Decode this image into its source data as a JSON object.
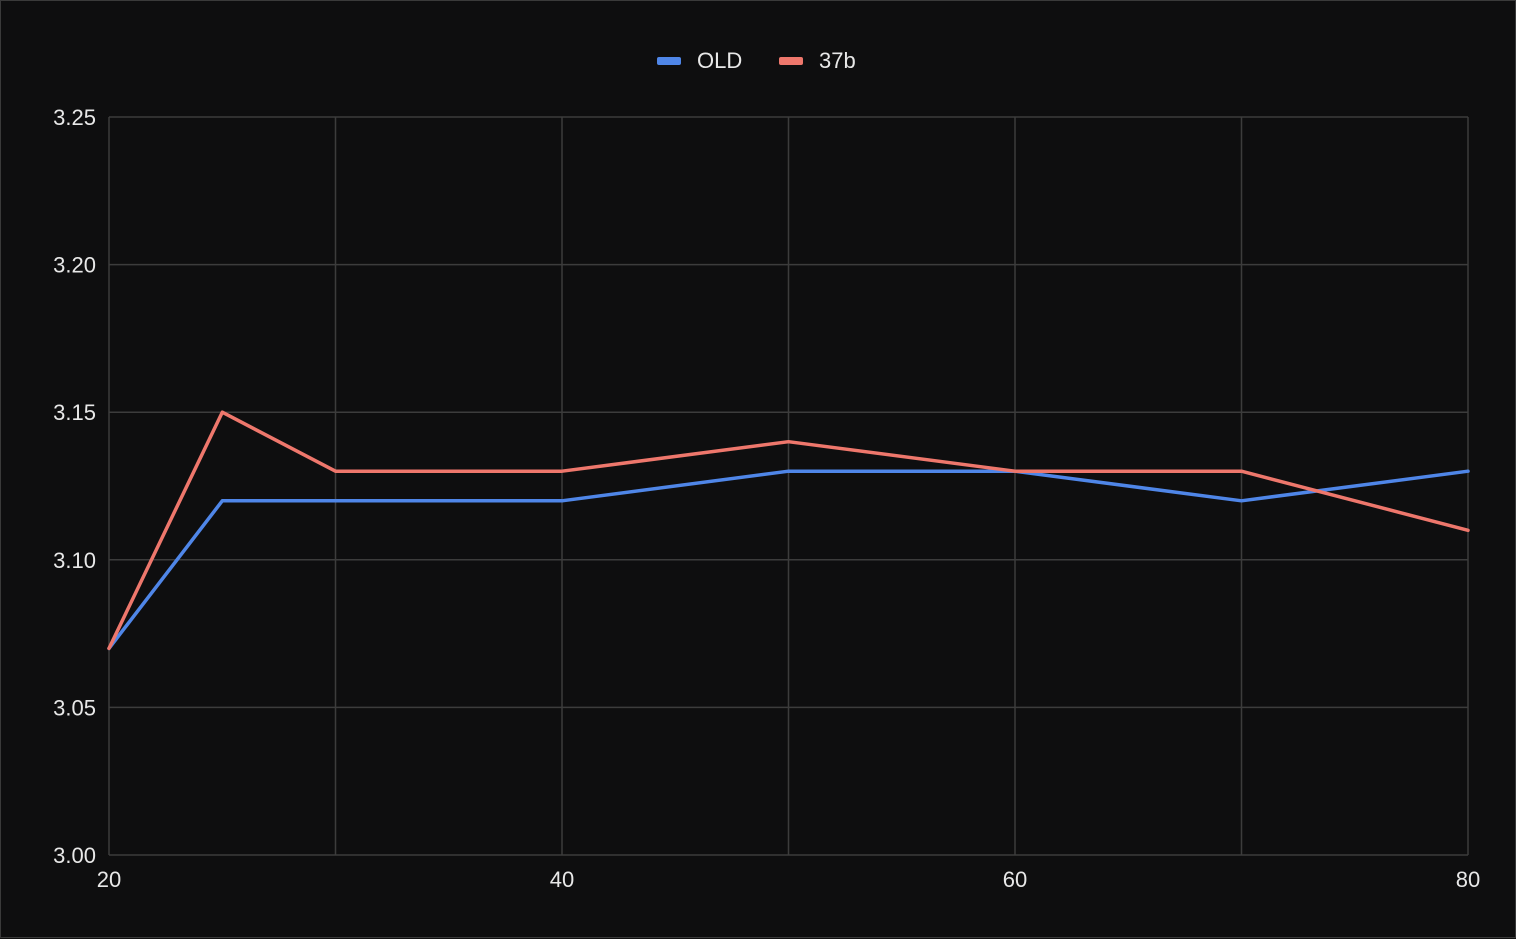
{
  "chart_data": {
    "type": "line",
    "title": "",
    "xlabel": "",
    "ylabel": "",
    "xlim": [
      20,
      80
    ],
    "ylim": [
      3.0,
      3.25
    ],
    "x_ticks": [
      20,
      40,
      60,
      80
    ],
    "x_tick_labels": [
      "20",
      "40",
      "60",
      "80"
    ],
    "x_minor_grid": [
      30,
      50,
      70
    ],
    "y_ticks": [
      3.0,
      3.05,
      3.1,
      3.15,
      3.2,
      3.25
    ],
    "y_tick_labels": [
      "3.00",
      "3.05",
      "3.10",
      "3.15",
      "3.20",
      "3.25"
    ],
    "grid": true,
    "legend_position": "top-center",
    "background_color": "#0e0e0f",
    "grid_color": "#3c3c3c",
    "x": [
      20,
      25,
      30,
      40,
      50,
      60,
      70,
      80
    ],
    "series": [
      {
        "name": "OLD",
        "color": "#4f86e8",
        "values": [
          3.07,
          3.12,
          3.12,
          3.12,
          3.13,
          3.13,
          3.12,
          3.13
        ]
      },
      {
        "name": "37b",
        "color": "#ee776c",
        "values": [
          3.07,
          3.15,
          3.13,
          3.13,
          3.14,
          3.13,
          3.13,
          3.11
        ]
      }
    ]
  }
}
